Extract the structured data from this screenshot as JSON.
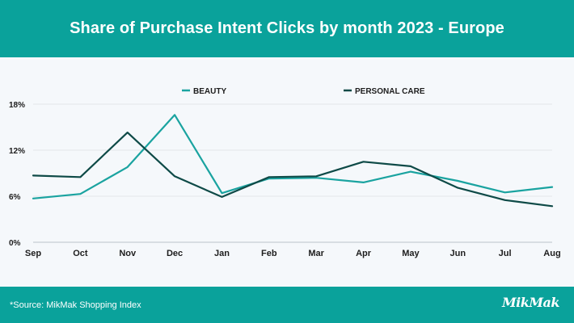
{
  "header": {
    "title": "Share of Purchase Intent Clicks by month 2023 - Europe"
  },
  "footer": {
    "source": "*Source: MikMak Shopping Index",
    "logo_text": "MikMak"
  },
  "colors": {
    "beauty": "#1aa3a0",
    "personal_care": "#0e4a47",
    "grid": "#e2e6ea",
    "axis": "#bcc2c8"
  },
  "chart_data": {
    "type": "line",
    "title": "Share of Purchase Intent Clicks by month 2023 - Europe",
    "xlabel": "",
    "ylabel": "",
    "categories": [
      "Sep",
      "Oct",
      "Nov",
      "Dec",
      "Jan",
      "Feb",
      "Mar",
      "Apr",
      "May",
      "Jun",
      "Jul",
      "Aug"
    ],
    "y_ticks": [
      {
        "value": 0,
        "label": "0%"
      },
      {
        "value": 6,
        "label": "6%"
      },
      {
        "value": 12,
        "label": "12%"
      },
      {
        "value": 18,
        "label": "18%"
      }
    ],
    "ylim": [
      0,
      18
    ],
    "grid": true,
    "legend_position": "top-center",
    "series": [
      {
        "name": "BEAUTY",
        "values": [
          5.7,
          6.3,
          9.8,
          16.6,
          6.4,
          8.3,
          8.4,
          7.8,
          9.2,
          8.0,
          6.5,
          7.2
        ]
      },
      {
        "name": "PERSONAL CARE",
        "values": [
          8.7,
          8.5,
          14.3,
          8.6,
          5.9,
          8.5,
          8.6,
          10.5,
          9.9,
          7.1,
          5.5,
          4.7
        ]
      }
    ]
  }
}
